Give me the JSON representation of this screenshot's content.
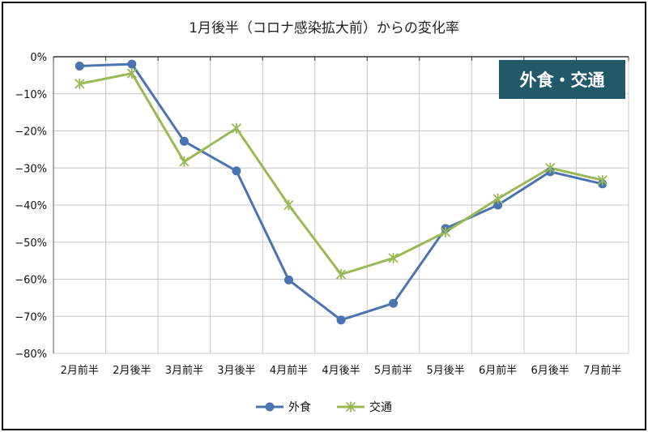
{
  "chart_data": {
    "type": "line",
    "title": "1月後半（コロナ感染拡大前）からの変化率",
    "badge": "外食・交通",
    "categories": [
      "2月前半",
      "2月後半",
      "3月前半",
      "3月後半",
      "4月前半",
      "4月後半",
      "5月前半",
      "5月後半",
      "6月前半",
      "6月後半",
      "7月前半"
    ],
    "ytick_labels": [
      "0%",
      "−10%",
      "−20%",
      "−30%",
      "−40%",
      "−50%",
      "−60%",
      "−70%",
      "−80%"
    ],
    "ytick_values": [
      0,
      -10,
      -20,
      -30,
      -40,
      -50,
      -60,
      -70,
      -80
    ],
    "ylim": [
      -80,
      0
    ],
    "xlabel": "",
    "ylabel": "",
    "grid": true,
    "legend_position": "bottom",
    "series": [
      {
        "name": "外食",
        "color": "#4a74b0",
        "marker": "circle",
        "values": [
          -2.5,
          -2.0,
          -22.8,
          -30.8,
          -60.2,
          -71.0,
          -66.5,
          -46.3,
          -40.0,
          -31.0,
          -34.3
        ]
      },
      {
        "name": "交通",
        "color": "#9ab955",
        "marker": "star",
        "values": [
          -7.3,
          -4.5,
          -28.3,
          -19.3,
          -40.0,
          -58.7,
          -54.3,
          -47.3,
          -38.3,
          -30.0,
          -33.3
        ]
      }
    ],
    "colors": {
      "badge_bg": "#215968"
    }
  }
}
